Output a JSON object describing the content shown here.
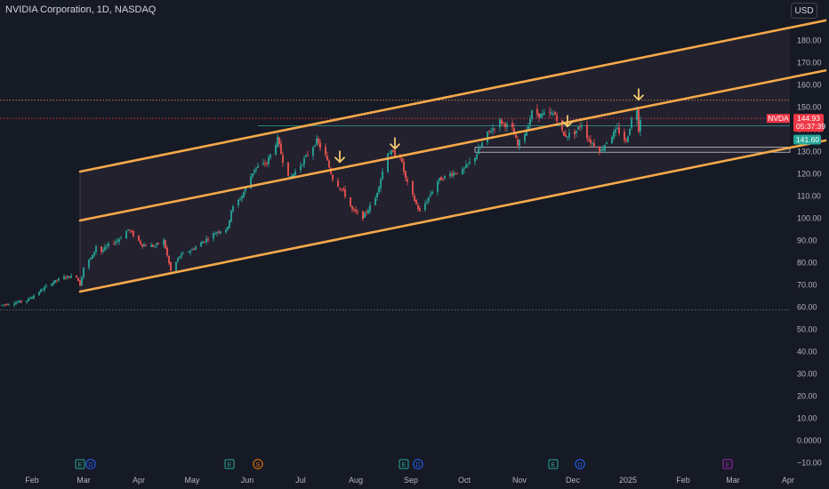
{
  "header": {
    "title": "NVIDIA Corporation, 1D, NASDAQ",
    "currency": "USD"
  },
  "price_labels": {
    "ticker": "NVDA",
    "last_price": "144.93",
    "countdown": "05:37:39",
    "level_price": "141.60"
  },
  "colors": {
    "background": "#161a25",
    "up": "#26a69a",
    "down": "#ef5350",
    "channel": "#f7a94b",
    "arrow": "#f5c870",
    "last_price": "#f23645"
  },
  "event_markers": [
    {
      "type": "E",
      "date": "2024-02-28",
      "color": "#26a69a"
    },
    {
      "type": "D",
      "date": "2024-03-05",
      "color": "#2962ff"
    },
    {
      "type": "E",
      "date": "2024-05-22",
      "color": "#26a69a"
    },
    {
      "type": "S",
      "date": "2024-06-07",
      "color": "#f57c00"
    },
    {
      "type": "E",
      "date": "2024-08-28",
      "color": "#26a69a"
    },
    {
      "type": "D",
      "date": "2024-09-05",
      "color": "#2962ff"
    },
    {
      "type": "E",
      "date": "2024-11-20",
      "color": "#26a69a"
    },
    {
      "type": "D",
      "date": "2024-12-05",
      "color": "#2962ff"
    },
    {
      "type": "E",
      "date": "2025-02-26",
      "color": "#9c27b0"
    }
  ],
  "chart_data": {
    "type": "candlestick",
    "title": "NVIDIA Corporation, 1D, NASDAQ",
    "x_type": "date",
    "x_ticks": [
      {
        "label": "Feb",
        "date": "2024-02-01"
      },
      {
        "label": "Mar",
        "date": "2024-03-01"
      },
      {
        "label": "Apr",
        "date": "2024-04-01"
      },
      {
        "label": "May",
        "date": "2024-05-01"
      },
      {
        "label": "Jun",
        "date": "2024-06-01"
      },
      {
        "label": "Jul",
        "date": "2024-07-01"
      },
      {
        "label": "Aug",
        "date": "2024-08-01"
      },
      {
        "label": "Sep",
        "date": "2024-09-01"
      },
      {
        "label": "Oct",
        "date": "2024-10-01"
      },
      {
        "label": "Nov",
        "date": "2024-11-01"
      },
      {
        "label": "Dec",
        "date": "2024-12-01"
      },
      {
        "label": "2025",
        "date": "2025-01-01"
      },
      {
        "label": "Feb",
        "date": "2025-02-01"
      },
      {
        "label": "Mar",
        "date": "2025-03-01"
      },
      {
        "label": "Apr",
        "date": "2025-04-01"
      }
    ],
    "y_ticks": [
      "180.00",
      "170.00",
      "160.00",
      "150.00",
      "140.00",
      "130.00",
      "120.00",
      "110.00",
      "100.00",
      "90.00",
      "80.00",
      "70.00",
      "60.00",
      "50.00",
      "40.00",
      "30.00",
      "20.00",
      "10.00",
      "0.0000",
      "−10.00"
    ],
    "y_tick_values": [
      180,
      170,
      160,
      150,
      140,
      130,
      120,
      110,
      100,
      90,
      80,
      70,
      60,
      50,
      40,
      30,
      20,
      10,
      0,
      -10
    ],
    "ylim": [
      -12,
      188
    ],
    "xlim": [
      "2024-01-14",
      "2025-04-22"
    ],
    "grid": false,
    "price_path": [
      [
        "2024-01-15",
        61
      ],
      [
        "2024-01-22",
        62
      ],
      [
        "2024-01-29",
        63
      ],
      [
        "2024-02-05",
        67
      ],
      [
        "2024-02-12",
        71
      ],
      [
        "2024-02-19",
        73.5
      ],
      [
        "2024-02-26",
        74
      ],
      [
        "2024-02-28",
        70
      ],
      [
        "2024-03-01",
        78
      ],
      [
        "2024-03-06",
        83
      ],
      [
        "2024-03-08",
        87.5
      ],
      [
        "2024-03-11",
        85
      ],
      [
        "2024-03-15",
        88
      ],
      [
        "2024-03-20",
        90
      ],
      [
        "2024-03-26",
        95
      ],
      [
        "2024-04-03",
        88
      ],
      [
        "2024-04-10",
        87.5
      ],
      [
        "2024-04-15",
        90
      ],
      [
        "2024-04-19",
        76.2
      ],
      [
        "2024-04-24",
        83
      ],
      [
        "2024-05-01",
        86
      ],
      [
        "2024-05-08",
        90
      ],
      [
        "2024-05-15",
        94
      ],
      [
        "2024-05-21",
        95.5
      ],
      [
        "2024-05-23",
        103.8
      ],
      [
        "2024-05-29",
        110
      ],
      [
        "2024-06-05",
        122.4
      ],
      [
        "2024-06-12",
        125
      ],
      [
        "2024-06-18",
        135.6
      ],
      [
        "2024-06-21",
        126
      ],
      [
        "2024-06-25",
        118
      ],
      [
        "2024-07-01",
        124
      ],
      [
        "2024-07-10",
        134.9
      ],
      [
        "2024-07-15",
        128
      ],
      [
        "2024-07-19",
        117.9
      ],
      [
        "2024-07-25",
        112
      ],
      [
        "2024-07-30",
        103.7
      ],
      [
        "2024-08-05",
        100.5
      ],
      [
        "2024-08-12",
        109
      ],
      [
        "2024-08-19",
        130
      ],
      [
        "2024-08-26",
        128
      ],
      [
        "2024-08-29",
        117.6
      ],
      [
        "2024-09-04",
        106.2
      ],
      [
        "2024-09-06",
        102.8
      ],
      [
        "2024-09-10",
        108
      ],
      [
        "2024-09-16",
        116.8
      ],
      [
        "2024-09-23",
        120
      ],
      [
        "2024-09-30",
        121.4
      ],
      [
        "2024-10-07",
        127.7
      ],
      [
        "2024-10-14",
        138
      ],
      [
        "2024-10-21",
        143.7
      ],
      [
        "2024-10-28",
        140
      ],
      [
        "2024-10-31",
        132.8
      ],
      [
        "2024-11-05",
        139.9
      ],
      [
        "2024-11-08",
        147.6
      ],
      [
        "2024-11-13",
        146.3
      ],
      [
        "2024-11-19",
        147
      ],
      [
        "2024-11-21",
        146.7
      ],
      [
        "2024-11-26",
        136.9
      ],
      [
        "2024-12-02",
        138.6
      ],
      [
        "2024-12-06",
        142.4
      ],
      [
        "2024-12-10",
        135.1
      ],
      [
        "2024-12-17",
        130.4
      ],
      [
        "2024-12-20",
        134.7
      ],
      [
        "2024-12-26",
        139.9
      ],
      [
        "2024-12-31",
        134.3
      ],
      [
        "2025-01-03",
        144.5
      ],
      [
        "2025-01-06",
        149.4
      ],
      [
        "2025-01-07",
        140.1
      ],
      [
        "2025-01-08",
        144.93
      ]
    ],
    "channel_lines": [
      {
        "name": "upper",
        "start": [
          "2024-02-28",
          121
        ],
        "end": [
          "2025-04-22",
          189
        ]
      },
      {
        "name": "middle",
        "start": [
          "2024-02-28",
          99
        ],
        "end": [
          "2025-04-22",
          166.5
        ]
      },
      {
        "name": "lower",
        "start": [
          "2024-02-28",
          67
        ],
        "end": [
          "2025-04-22",
          135
        ]
      }
    ],
    "horizontal_lines": [
      {
        "price": 153.1,
        "style": "dotted",
        "color": "#f7a94b"
      },
      {
        "price": 144.93,
        "style": "dotted",
        "color": "#f23645"
      },
      {
        "price": 141.6,
        "style": "solid",
        "color": "#26a69a"
      },
      {
        "price": 58.8,
        "style": "dotted",
        "color": "#787b86"
      }
    ],
    "support_zone": {
      "from": "2024-10-07",
      "to": "2025-04-22",
      "low": 129.7,
      "high": 132
    },
    "arrows": [
      {
        "date": "2024-07-23",
        "price": 125.3
      },
      {
        "date": "2024-08-23",
        "price": 131.3
      },
      {
        "date": "2024-11-28",
        "price": 141.3
      },
      {
        "date": "2025-01-07",
        "price": 153.3
      }
    ]
  }
}
